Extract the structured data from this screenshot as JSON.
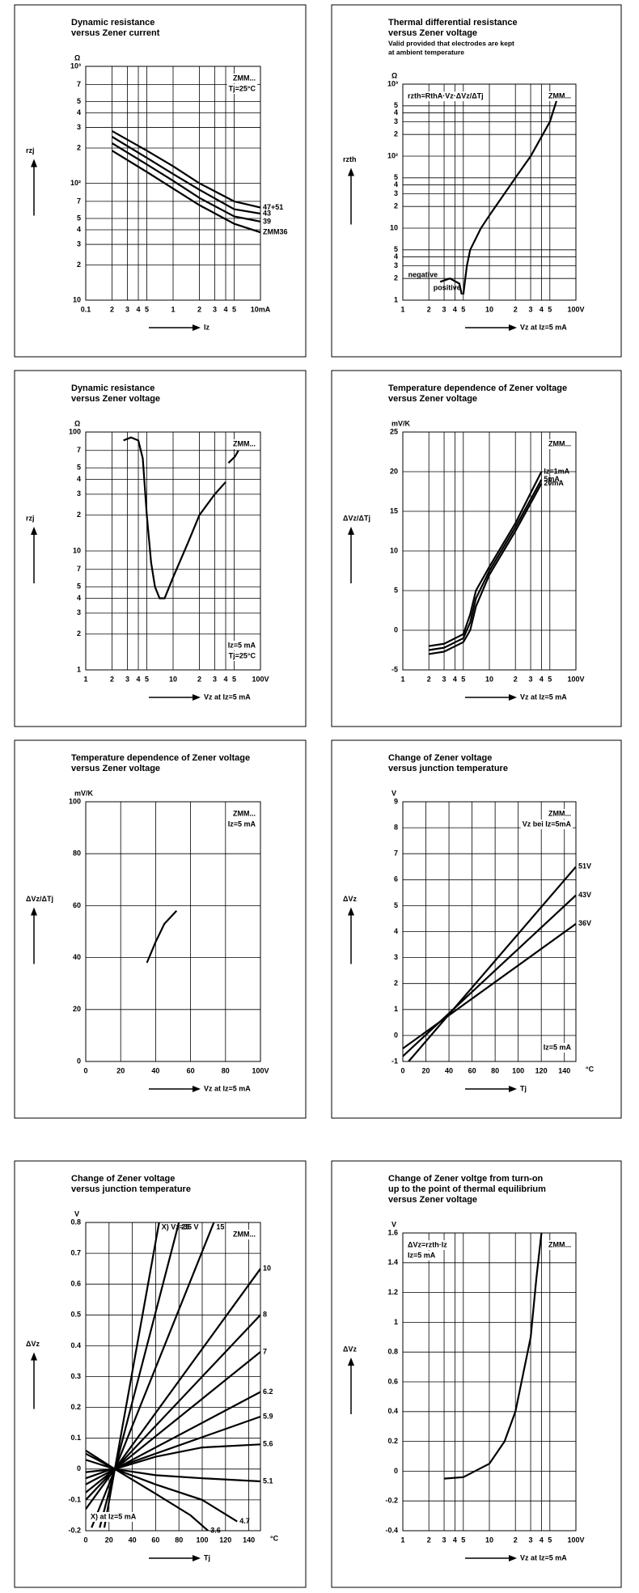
{
  "chart_data": [
    {
      "type": "line",
      "title": [
        "Dynamic resistance",
        "versus Zener current"
      ],
      "yunit": "Ω",
      "ylabel": "rzj",
      "xlabel": "Iz",
      "xscale": "log",
      "yscale": "log",
      "xlim": [
        0.1,
        10
      ],
      "ylim": [
        10,
        1000
      ],
      "grid": true,
      "color": "#000000",
      "xticks": [
        0.1,
        {
          "value": 0.2,
          "label": "2"
        },
        {
          "value": 0.3,
          "label": "3"
        },
        {
          "value": 0.4,
          "label": "4"
        },
        {
          "value": 0.5,
          "label": "5"
        },
        1,
        2,
        3,
        4,
        5,
        {
          "value": 10,
          "label": "10mA"
        }
      ],
      "yticks": [
        10,
        {
          "value": 20,
          "label": "2"
        },
        {
          "value": 30,
          "label": "3"
        },
        {
          "value": 40,
          "label": "4"
        },
        {
          "value": 50,
          "label": "5"
        },
        {
          "value": 70,
          "label": "7"
        },
        {
          "value": 100,
          "label": "10²"
        },
        {
          "value": 200,
          "label": "2"
        },
        {
          "value": 300,
          "label": "3"
        },
        {
          "value": 400,
          "label": "4"
        },
        {
          "value": 500,
          "label": "5"
        },
        {
          "value": 700,
          "label": "7"
        },
        {
          "value": 1000,
          "label": "10³"
        }
      ],
      "annotations": [
        {
          "text": "ZMM...",
          "corner": "top-right"
        },
        {
          "text": "Tj=25°C",
          "corner": "top-right"
        }
      ],
      "series": [
        {
          "name": "47+51",
          "label_at": "end",
          "x": [
            0.2,
            0.5,
            1,
            2,
            5,
            10
          ],
          "values": [
            280,
            190,
            140,
            100,
            70,
            62
          ]
        },
        {
          "name": "43",
          "label_at": "end",
          "x": [
            0.2,
            0.5,
            1,
            2,
            5,
            10
          ],
          "values": [
            250,
            165,
            120,
            88,
            60,
            55
          ]
        },
        {
          "name": "39",
          "label_at": "end",
          "x": [
            0.2,
            0.5,
            1,
            2,
            5,
            10
          ],
          "values": [
            220,
            145,
            105,
            75,
            52,
            47
          ]
        },
        {
          "name": "ZMM36",
          "label_at": "end",
          "x": [
            0.2,
            0.5,
            1,
            2,
            5,
            10
          ],
          "values": [
            190,
            125,
            90,
            65,
            45,
            38
          ]
        }
      ]
    },
    {
      "type": "line",
      "title": [
        "Thermal differential resistance",
        "versus Zener voltage"
      ],
      "subtitle": [
        "Valid provided that electrodes are kept",
        "at ambient temperature"
      ],
      "yunit": "Ω",
      "ylabel": "rzth",
      "xlabel": "Vz at Iz=5 mA",
      "xscale": "log",
      "yscale": "log",
      "xlim": [
        1,
        100
      ],
      "ylim": [
        1,
        1000
      ],
      "grid": true,
      "color": "#000000",
      "xticks": [
        1,
        2,
        3,
        4,
        5,
        10,
        {
          "value": 20,
          "label": "2"
        },
        {
          "value": 30,
          "label": "3"
        },
        {
          "value": 40,
          "label": "4"
        },
        {
          "value": 50,
          "label": "5"
        },
        {
          "value": 100,
          "label": "100V"
        }
      ],
      "yticks": [
        1,
        2,
        3,
        4,
        5,
        10,
        {
          "value": 20,
          "label": "2"
        },
        {
          "value": 30,
          "label": "3"
        },
        {
          "value": 40,
          "label": "4"
        },
        {
          "value": 50,
          "label": "5"
        },
        {
          "value": 100,
          "label": "10²"
        },
        {
          "value": 200,
          "label": "2"
        },
        {
          "value": 300,
          "label": "3"
        },
        {
          "value": 400,
          "label": "4"
        },
        {
          "value": 500,
          "label": "5"
        },
        {
          "value": 1000,
          "label": "10³"
        }
      ],
      "annotations": [
        {
          "text": "ZMM...",
          "corner": "top-right"
        },
        {
          "text": "rzth=RthA·Vz·ΔVz/ΔTj",
          "corner": "top-left"
        }
      ],
      "series": [
        {
          "name": "negative",
          "label_at": "start",
          "x": [
            2.7,
            3.5,
            4.5,
            4.8
          ],
          "values": [
            1.8,
            2,
            1.7,
            1.2
          ]
        },
        {
          "name": "positive",
          "label_at": "start",
          "x": [
            5,
            5.5,
            6,
            8,
            10,
            20,
            30,
            50,
            60
          ],
          "values": [
            1.2,
            3,
            5,
            10,
            15,
            50,
            100,
            300,
            600
          ]
        }
      ]
    },
    {
      "type": "line",
      "title": [
        "Dynamic resistance",
        "versus Zener voltage"
      ],
      "yunit": "Ω",
      "ylabel": "rzj",
      "xlabel": "Vz at Iz=5 mA",
      "xscale": "log",
      "yscale": "log",
      "xlim": [
        1,
        100
      ],
      "ylim": [
        1,
        100
      ],
      "grid": true,
      "color": "#000000",
      "xticks": [
        1,
        2,
        3,
        4,
        5,
        10,
        {
          "value": 20,
          "label": "2"
        },
        {
          "value": 30,
          "label": "3"
        },
        {
          "value": 40,
          "label": "4"
        },
        {
          "value": 50,
          "label": "5"
        },
        {
          "value": 100,
          "label": "100V"
        }
      ],
      "yticks": [
        1,
        2,
        3,
        4,
        5,
        7,
        10,
        {
          "value": 20,
          "label": "2"
        },
        {
          "value": 30,
          "label": "3"
        },
        {
          "value": 40,
          "label": "4"
        },
        {
          "value": 50,
          "label": "5"
        },
        {
          "value": 70,
          "label": "7"
        },
        100
      ],
      "annotations": [
        {
          "text": "ZMM...",
          "corner": "top-right"
        },
        {
          "text": "Tj=25°C",
          "corner": "bottom-right"
        },
        {
          "text": "Iz=5 mA",
          "corner": "bottom-right"
        }
      ],
      "series": [
        {
          "x": [
            2.7,
            3.3,
            4,
            4.5,
            5,
            5.6,
            6.2,
            7,
            8,
            10,
            15,
            20,
            30,
            40
          ],
          "values": [
            85,
            90,
            85,
            60,
            20,
            8,
            5,
            4,
            4,
            6,
            12,
            20,
            30,
            38
          ]
        },
        {
          "x": [
            43,
            51,
            56
          ],
          "values": [
            55,
            62,
            70
          ]
        }
      ]
    },
    {
      "type": "line",
      "title": [
        "Temperature dependence of Zener voltage",
        "versus Zener voltage"
      ],
      "yunit": "mV/K",
      "ylabel": "ΔVz/ΔTj",
      "xlabel": "Vz at Iz=5 mA",
      "xscale": "log",
      "yscale": "linear",
      "xlim": [
        1,
        100
      ],
      "ylim": [
        -5,
        25
      ],
      "grid": true,
      "color": "#000000",
      "xticks": [
        1,
        2,
        3,
        4,
        5,
        10,
        {
          "value": 20,
          "label": "2"
        },
        {
          "value": 30,
          "label": "3"
        },
        {
          "value": 40,
          "label": "4"
        },
        {
          "value": 50,
          "label": "5"
        },
        {
          "value": 100,
          "label": "100V"
        }
      ],
      "yticks": [
        -5,
        0,
        5,
        10,
        15,
        20,
        25
      ],
      "annotations": [
        {
          "text": "ZMM...",
          "corner": "top-right"
        }
      ],
      "series": [
        {
          "name": "5mA",
          "label_at": "end",
          "x": [
            2,
            3,
            5,
            6,
            7,
            10,
            20,
            40
          ],
          "values": [
            -2.5,
            -2.2,
            -1,
            1,
            4,
            7.5,
            13,
            19
          ]
        },
        {
          "name": "Iz=1mA",
          "label_at": "end",
          "x": [
            2,
            3,
            5,
            6,
            7,
            10,
            20,
            40
          ],
          "values": [
            -2,
            -1.7,
            -0.5,
            2,
            5,
            8,
            13.5,
            20
          ]
        },
        {
          "name": "20mA",
          "label_at": "end",
          "x": [
            2,
            3,
            5,
            6,
            7,
            10,
            20,
            40
          ],
          "values": [
            -3,
            -2.7,
            -1.5,
            0,
            3,
            7,
            12.5,
            18.5
          ]
        }
      ]
    },
    {
      "type": "line",
      "title": [
        "Temperature dependence of Zener voltage",
        "versus Zener voltage"
      ],
      "yunit": "mV/K",
      "ylabel": "ΔVz/ΔTj",
      "xlabel": "Vz at Iz=5 mA",
      "xscale": "linear",
      "yscale": "linear",
      "xlim": [
        0,
        100
      ],
      "ylim": [
        0,
        100
      ],
      "grid": true,
      "color": "#000000",
      "xticks": [
        0,
        20,
        40,
        60,
        80,
        {
          "value": 100,
          "label": "100V"
        }
      ],
      "yticks": [
        0,
        20,
        40,
        60,
        80,
        100
      ],
      "annotations": [
        {
          "text": "ZMM...",
          "corner": "top-right"
        },
        {
          "text": "Iz=5 mA",
          "corner": "top-right"
        }
      ],
      "series": [
        {
          "x": [
            35,
            40,
            45,
            52
          ],
          "values": [
            38,
            46,
            53,
            58
          ]
        }
      ]
    },
    {
      "type": "line",
      "title": [
        "Change of Zener voltage",
        "versus junction temperature"
      ],
      "yunit": "V",
      "ylabel": "ΔVz",
      "xlabel": "Tj",
      "xunit": "°C",
      "xscale": "linear",
      "yscale": "linear",
      "xlim": [
        0,
        150
      ],
      "ylim": [
        -1,
        9
      ],
      "grid": true,
      "color": "#000000",
      "xticks": [
        0,
        20,
        40,
        60,
        80,
        100,
        120,
        140
      ],
      "yticks": [
        -1,
        0,
        1,
        2,
        3,
        4,
        5,
        6,
        7,
        8,
        9
      ],
      "annotations": [
        {
          "text": "ZMM...",
          "corner": "top-right"
        },
        {
          "text": "Vz bei Iz=5mA",
          "corner": "top-right"
        },
        {
          "text": "Iz=5 mA",
          "corner": "bottom-right"
        }
      ],
      "series": [
        {
          "name": "51V",
          "label_at": "end",
          "x": [
            5,
            150
          ],
          "values": [
            -1,
            6.5
          ]
        },
        {
          "name": "43V",
          "label_at": "end",
          "x": [
            0,
            150
          ],
          "values": [
            -0.8,
            5.4
          ]
        },
        {
          "name": "36V",
          "label_at": "end",
          "x": [
            0,
            150
          ],
          "values": [
            -0.5,
            4.3
          ]
        }
      ]
    },
    {
      "type": "line",
      "title": [
        "Change of Zener voltage",
        "versus junction temperature"
      ],
      "yunit": "V",
      "ylabel": "ΔVz",
      "xlabel": "Tj",
      "xunit": "°C",
      "xscale": "linear",
      "yscale": "linear",
      "xlim": [
        0,
        150
      ],
      "ylim": [
        -0.2,
        0.8
      ],
      "grid": true,
      "color": "#000000",
      "xticks": [
        0,
        20,
        40,
        60,
        80,
        100,
        120,
        140
      ],
      "yticks": [
        -0.2,
        -0.1,
        0,
        0.1,
        0.2,
        0.3,
        0.4,
        0.5,
        0.6,
        0.7,
        0.8
      ],
      "annotations": [
        {
          "text": "ZMM...",
          "corner": "top-right"
        },
        {
          "text": "X) at Iz=5 mA",
          "corner": "bottom-left"
        }
      ],
      "series": [
        {
          "name": "X) Vz=35 V",
          "label_at": "end",
          "x": [
            16,
            63
          ],
          "values": [
            -0.19,
            0.8
          ]
        },
        {
          "name": "25",
          "label_at": "end",
          "x": [
            12,
            80
          ],
          "values": [
            -0.19,
            0.8
          ]
        },
        {
          "name": "15",
          "label_at": "end",
          "x": [
            5,
            110
          ],
          "values": [
            -0.19,
            0.8
          ]
        },
        {
          "name": "10",
          "label_at": "end",
          "x": [
            0,
            150
          ],
          "values": [
            -0.13,
            0.65
          ]
        },
        {
          "name": "8",
          "label_at": "end",
          "x": [
            0,
            150
          ],
          "values": [
            -0.1,
            0.5
          ]
        },
        {
          "name": "7",
          "label_at": "end",
          "x": [
            0,
            150
          ],
          "values": [
            -0.076,
            0.38
          ]
        },
        {
          "name": "6.2",
          "label_at": "end",
          "x": [
            0,
            150
          ],
          "values": [
            -0.05,
            0.25
          ]
        },
        {
          "name": "5.9",
          "label_at": "end",
          "x": [
            0,
            150
          ],
          "values": [
            -0.03,
            0.17
          ]
        },
        {
          "name": "5.6",
          "label_at": "end",
          "x": [
            0,
            25,
            60,
            100,
            150
          ],
          "values": [
            -0.01,
            0,
            0.04,
            0.07,
            0.08
          ]
        },
        {
          "name": "5.1",
          "label_at": "end",
          "x": [
            0,
            25,
            60,
            100,
            150
          ],
          "values": [
            0.03,
            0,
            -0.02,
            -0.03,
            -0.04
          ]
        },
        {
          "name": "4.7",
          "label_at": "end",
          "x": [
            0,
            25,
            60,
            100,
            130
          ],
          "values": [
            0.05,
            0,
            -0.05,
            -0.1,
            -0.17
          ]
        },
        {
          "name": "3.6",
          "label_at": "end",
          "x": [
            0,
            25,
            60,
            90,
            105
          ],
          "values": [
            0.06,
            0,
            -0.08,
            -0.15,
            -0.2
          ]
        }
      ]
    },
    {
      "type": "line",
      "title": [
        "Change of Zener voltge from turn-on",
        "up to the point of thermal equilibrium",
        "versus Zener voltage"
      ],
      "yunit": "V",
      "ylabel": "ΔVz",
      "xlabel": "Vz at Iz=5 mA",
      "xscale": "log",
      "yscale": "linear",
      "xlim": [
        1,
        100
      ],
      "ylim": [
        -0.4,
        1.6
      ],
      "grid": true,
      "color": "#000000",
      "xticks": [
        1,
        2,
        3,
        4,
        5,
        10,
        {
          "value": 20,
          "label": "2"
        },
        {
          "value": 30,
          "label": "3"
        },
        {
          "value": 40,
          "label": "4"
        },
        {
          "value": 50,
          "label": "5"
        },
        {
          "value": 100,
          "label": "100V"
        }
      ],
      "yticks": [
        -0.4,
        -0.2,
        0,
        0.2,
        0.4,
        0.6,
        0.8,
        1,
        1.2,
        1.4,
        1.6
      ],
      "annotations": [
        {
          "text": "ZMM...",
          "corner": "top-right"
        },
        {
          "text": "ΔVz=rzth·Iz",
          "corner": "top-left"
        },
        {
          "text": "Iz=5 mA",
          "corner": "top-left"
        }
      ],
      "series": [
        {
          "x": [
            3,
            5,
            10,
            15,
            20,
            30,
            35,
            40
          ],
          "values": [
            -0.05,
            -0.04,
            0.05,
            0.2,
            0.4,
            0.9,
            1.3,
            1.6
          ]
        }
      ]
    }
  ]
}
